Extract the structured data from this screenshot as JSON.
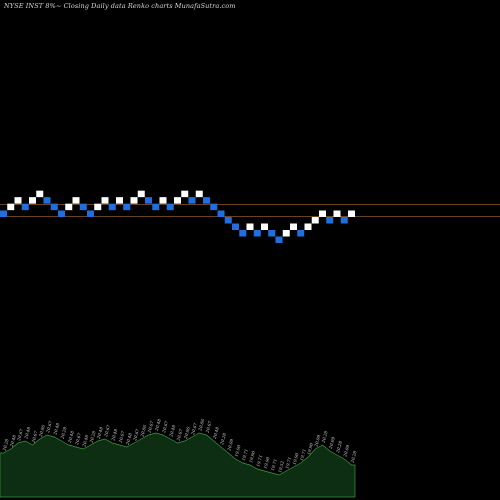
{
  "chart_data": {
    "type": "renko",
    "title": "NYSE INST 8%~  Closing Daily data  Renko  charts MunafaSutra.com",
    "bricks": [
      {
        "price": 20.28,
        "dir": "down"
      },
      {
        "price": 20.48,
        "dir": "up"
      },
      {
        "price": 20.67,
        "dir": "up"
      },
      {
        "price": 20.48,
        "dir": "down"
      },
      {
        "price": 20.67,
        "dir": "up"
      },
      {
        "price": 20.86,
        "dir": "up"
      },
      {
        "price": 20.67,
        "dir": "down"
      },
      {
        "price": 20.48,
        "dir": "down"
      },
      {
        "price": 20.28,
        "dir": "down"
      },
      {
        "price": 20.48,
        "dir": "up"
      },
      {
        "price": 20.67,
        "dir": "up"
      },
      {
        "price": 20.48,
        "dir": "down"
      },
      {
        "price": 20.28,
        "dir": "down"
      },
      {
        "price": 20.48,
        "dir": "up"
      },
      {
        "price": 20.67,
        "dir": "up"
      },
      {
        "price": 20.48,
        "dir": "down"
      },
      {
        "price": 20.67,
        "dir": "up"
      },
      {
        "price": 20.48,
        "dir": "down"
      },
      {
        "price": 20.67,
        "dir": "up"
      },
      {
        "price": 20.86,
        "dir": "up"
      },
      {
        "price": 20.67,
        "dir": "down"
      },
      {
        "price": 20.48,
        "dir": "down"
      },
      {
        "price": 20.67,
        "dir": "up"
      },
      {
        "price": 20.48,
        "dir": "down"
      },
      {
        "price": 20.67,
        "dir": "up"
      },
      {
        "price": 20.86,
        "dir": "up"
      },
      {
        "price": 20.67,
        "dir": "down"
      },
      {
        "price": 20.86,
        "dir": "up"
      },
      {
        "price": 20.67,
        "dir": "down"
      },
      {
        "price": 20.48,
        "dir": "down"
      },
      {
        "price": 20.28,
        "dir": "down"
      },
      {
        "price": 20.09,
        "dir": "down"
      },
      {
        "price": 19.9,
        "dir": "down"
      },
      {
        "price": 19.71,
        "dir": "down"
      },
      {
        "price": 19.9,
        "dir": "up"
      },
      {
        "price": 19.71,
        "dir": "down"
      },
      {
        "price": 19.9,
        "dir": "up"
      },
      {
        "price": 19.71,
        "dir": "down"
      },
      {
        "price": 19.52,
        "dir": "down"
      },
      {
        "price": 19.71,
        "dir": "up"
      },
      {
        "price": 19.9,
        "dir": "up"
      },
      {
        "price": 19.71,
        "dir": "down"
      },
      {
        "price": 19.9,
        "dir": "up"
      },
      {
        "price": 20.09,
        "dir": "up"
      },
      {
        "price": 20.28,
        "dir": "up"
      },
      {
        "price": 20.09,
        "dir": "down"
      },
      {
        "price": 20.28,
        "dir": "up"
      },
      {
        "price": 20.09,
        "dir": "down"
      },
      {
        "price": 20.28,
        "dir": "up"
      }
    ],
    "labels": [
      "20.28",
      "20.48",
      "20.67",
      "20.48",
      "20.67",
      "20.86",
      "20.67",
      "20.48",
      "20.28",
      "20.48",
      "20.67",
      "20.48",
      "20.28",
      "20.48",
      "20.67",
      "20.48",
      "20.67",
      "20.48",
      "20.67",
      "20.86",
      "20.67",
      "20.48",
      "20.67",
      "20.48",
      "20.67",
      "20.86",
      "20.67",
      "20.86",
      "20.67",
      "20.48",
      "20.28",
      "20.09",
      "19.90",
      "19.71",
      "19.90",
      "19.71",
      "19.90",
      "19.71",
      "19.52",
      "19.71",
      "19.90",
      "19.71",
      "19.90",
      "20.09",
      "20.28",
      "20.09",
      "20.28",
      "20.09",
      "20.28"
    ],
    "reference_lines": [
      20.67,
      20.28
    ],
    "volume": [
      22,
      24,
      27,
      28,
      26,
      29,
      31,
      30,
      28,
      26,
      25,
      24,
      26,
      28,
      29,
      27,
      26,
      25,
      27,
      29,
      31,
      32,
      31,
      29,
      27,
      28,
      30,
      32,
      31,
      28,
      25,
      22,
      19,
      17,
      16,
      14,
      13,
      12,
      11,
      13,
      15,
      17,
      20,
      24,
      26,
      23,
      21,
      19,
      16
    ],
    "colors": {
      "background": "#000000",
      "up_brick": "#ffffff",
      "down_brick": "#1f6fe0",
      "reference_line": "#8b5a2b",
      "volume_fill": "#0d2e12",
      "volume_line": "#3a9a3a",
      "label_text": "#cfcfcf"
    }
  }
}
